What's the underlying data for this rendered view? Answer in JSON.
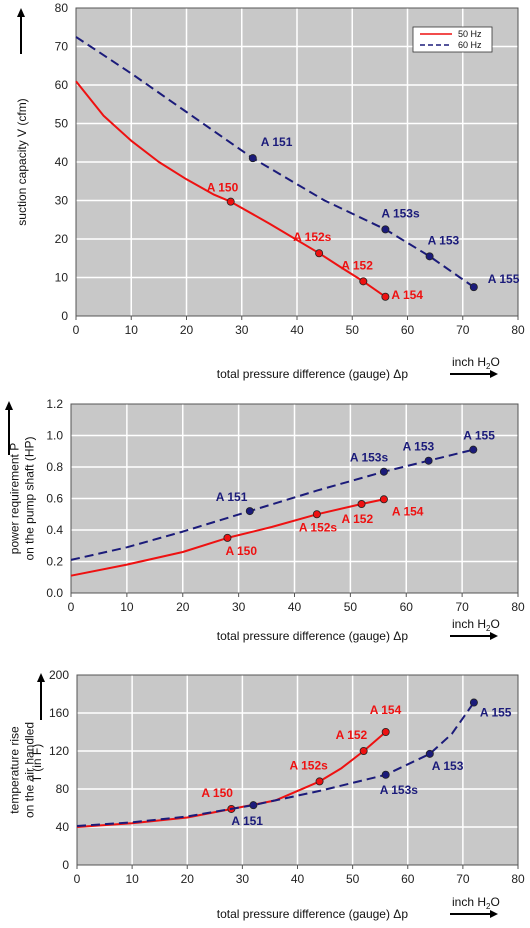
{
  "colors": {
    "hz50": "#ee1111",
    "hz60": "#1b1b7a",
    "plot_bg": "#c8c8c8",
    "grid": "#ffffff"
  },
  "legend": {
    "hz50": "50 Hz",
    "hz60": "60 Hz"
  },
  "unit_label": {
    "main": "inch H",
    "sub": "2",
    "tail": "O"
  },
  "chart_data": [
    {
      "type": "line",
      "xlabel": "total pressure difference (gauge)  Δp",
      "ylabel_lines": [
        "suction capacity V (cfm)"
      ],
      "xlim": [
        0,
        80
      ],
      "ylim": [
        0,
        80
      ],
      "xticks": [
        0,
        10,
        20,
        30,
        40,
        50,
        60,
        70,
        80
      ],
      "yticks": [
        0,
        10,
        20,
        30,
        40,
        50,
        60,
        70,
        80
      ],
      "legend_position": "top-right",
      "series": [
        {
          "name": "50 Hz",
          "curve": [
            [
              0,
              61
            ],
            [
              5,
              52
            ],
            [
              10,
              45.5
            ],
            [
              15,
              40
            ],
            [
              20,
              35.5
            ],
            [
              25,
              31.5
            ],
            [
              28,
              29.7
            ],
            [
              35,
              24
            ],
            [
              44,
              16.3
            ],
            [
              48,
              12.6
            ],
            [
              52,
              9
            ],
            [
              56,
              5
            ]
          ],
          "points": [
            {
              "label": "A 150",
              "x": 28,
              "y": 29.7
            },
            {
              "label": "A 152s",
              "x": 44,
              "y": 16.3
            },
            {
              "label": "A 152",
              "x": 52,
              "y": 9
            },
            {
              "label": "A 154",
              "x": 56,
              "y": 5
            }
          ]
        },
        {
          "name": "60 Hz",
          "curve": [
            [
              0,
              72.5
            ],
            [
              10,
              63
            ],
            [
              20,
              53
            ],
            [
              32,
              41
            ],
            [
              45,
              30
            ],
            [
              56,
              22.5
            ],
            [
              64,
              15.5
            ],
            [
              72,
              7.5
            ]
          ],
          "points": [
            {
              "label": "A 151",
              "x": 32,
              "y": 41
            },
            {
              "label": "A 153s",
              "x": 56,
              "y": 22.5
            },
            {
              "label": "A 153",
              "x": 64,
              "y": 15.5
            },
            {
              "label": "A 155",
              "x": 72,
              "y": 7.5
            }
          ]
        }
      ]
    },
    {
      "type": "line",
      "xlabel": "total pressure difference (gauge)  Δp",
      "ylabel_lines": [
        "power requirement P",
        "on the pump shaft (HP)"
      ],
      "xlim": [
        0,
        80
      ],
      "ylim": [
        0,
        1.2
      ],
      "xticks": [
        0,
        10,
        20,
        30,
        40,
        50,
        60,
        70,
        80
      ],
      "yticks": [
        "0.0",
        "0.2",
        "0.4",
        "0.6",
        "0.8",
        "1.0",
        "1.2"
      ],
      "series": [
        {
          "name": "50 Hz",
          "curve": [
            [
              0,
              0.11
            ],
            [
              10,
              0.18
            ],
            [
              20,
              0.26
            ],
            [
              28,
              0.35
            ],
            [
              36,
              0.42
            ],
            [
              44,
              0.5
            ],
            [
              52,
              0.565
            ],
            [
              56,
              0.595
            ]
          ],
          "points": [
            {
              "label": "A 150",
              "x": 28,
              "y": 0.35
            },
            {
              "label": "A 152s",
              "x": 44,
              "y": 0.5
            },
            {
              "label": "A 152",
              "x": 52,
              "y": 0.565
            },
            {
              "label": "A 154",
              "x": 56,
              "y": 0.595
            }
          ]
        },
        {
          "name": "60 Hz",
          "curve": [
            [
              0,
              0.21
            ],
            [
              10,
              0.29
            ],
            [
              20,
              0.39
            ],
            [
              32,
              0.52
            ],
            [
              44,
              0.65
            ],
            [
              56,
              0.77
            ],
            [
              64,
              0.84
            ],
            [
              72,
              0.91
            ]
          ],
          "points": [
            {
              "label": "A 151",
              "x": 32,
              "y": 0.52
            },
            {
              "label": "A 153s",
              "x": 56,
              "y": 0.77
            },
            {
              "label": "A 153",
              "x": 64,
              "y": 0.84
            },
            {
              "label": "A 155",
              "x": 72,
              "y": 0.91
            }
          ]
        }
      ]
    },
    {
      "type": "line",
      "xlabel": "total pressure difference (gauge)  Δp",
      "ylabel_lines": [
        "temperature rise",
        "on the air handled"
      ],
      "ylabel_extra": "T     (in F)",
      "xlim": [
        0,
        80
      ],
      "ylim": [
        0,
        200
      ],
      "xticks": [
        0,
        10,
        20,
        30,
        40,
        50,
        60,
        70,
        80
      ],
      "yticks": [
        0,
        40,
        80,
        120,
        160,
        200
      ],
      "series": [
        {
          "name": "50 Hz",
          "curve": [
            [
              0,
              40
            ],
            [
              10,
              44
            ],
            [
              20,
              50
            ],
            [
              28,
              59
            ],
            [
              36,
              68
            ],
            [
              44,
              88
            ],
            [
              48,
              102
            ],
            [
              52,
              120
            ],
            [
              56,
              140
            ]
          ],
          "points": [
            {
              "label": "A 150",
              "x": 28,
              "y": 59
            },
            {
              "label": "A 152s",
              "x": 44,
              "y": 88
            },
            {
              "label": "A 152",
              "x": 52,
              "y": 120
            },
            {
              "label": "A 154",
              "x": 56,
              "y": 140
            }
          ]
        },
        {
          "name": "60 Hz",
          "curve": [
            [
              0,
              41
            ],
            [
              10,
              45
            ],
            [
              20,
              51
            ],
            [
              32,
              63
            ],
            [
              44,
              78
            ],
            [
              56,
              95
            ],
            [
              64,
              117
            ],
            [
              68,
              138
            ],
            [
              72,
              171
            ]
          ],
          "points": [
            {
              "label": "A 151",
              "x": 32,
              "y": 63
            },
            {
              "label": "A 153s",
              "x": 56,
              "y": 95
            },
            {
              "label": "A 153",
              "x": 64,
              "y": 117
            },
            {
              "label": "A 155",
              "x": 72,
              "y": 171
            }
          ]
        }
      ]
    }
  ]
}
